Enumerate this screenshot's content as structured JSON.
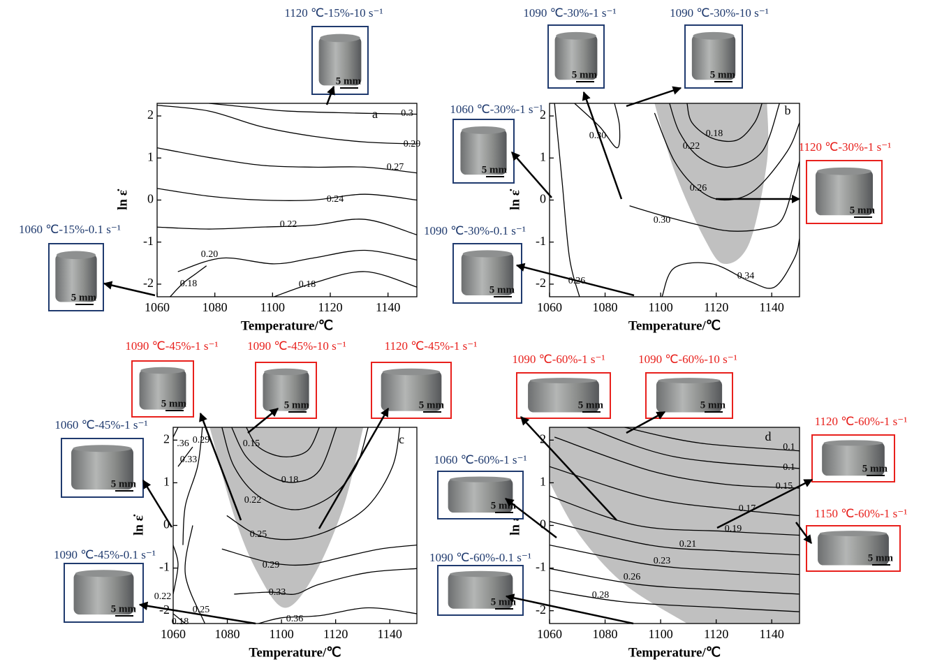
{
  "chart_data": [
    {
      "type": "contour",
      "panel": "a",
      "xlabel": "Temperature/℃",
      "ylabel": "ln ε̇",
      "xlim": [
        1060,
        1150
      ],
      "ylim": [
        -2.3,
        2.3
      ],
      "xticks": [
        1060,
        1080,
        1100,
        1120,
        1140
      ],
      "yticks": [
        -2,
        -1,
        0,
        1,
        2
      ],
      "contours": [
        {
          "value": 0.3,
          "label": "0.3"
        },
        {
          "value": 0.29,
          "label": "0.29"
        },
        {
          "value": 0.27,
          "label": "0.27"
        },
        {
          "value": 0.24,
          "label": "0.24"
        },
        {
          "value": 0.22,
          "label": "0.22"
        },
        {
          "value": 0.2,
          "label": "0.20"
        },
        {
          "value": 0.18,
          "label": "0.18"
        },
        {
          "value": 0.18,
          "label": "0.18"
        }
      ],
      "samples": [
        {
          "label": "1120 ℃-15%-10 s⁻¹",
          "scale": "5 mm",
          "color": "#1f3a6e"
        },
        {
          "label": "1060 ℃-15%-0.1 s⁻¹",
          "scale": "5 mm",
          "color": "#1f3a6e"
        }
      ]
    },
    {
      "type": "contour",
      "panel": "b",
      "xlabel": "Temperature/℃",
      "ylabel": "ln ε̇",
      "xlim": [
        1060,
        1150
      ],
      "ylim": [
        -2.3,
        2.3
      ],
      "xticks": [
        1060,
        1080,
        1100,
        1120,
        1140
      ],
      "yticks": [
        -2,
        -1,
        0,
        1,
        2
      ],
      "contours": [
        {
          "value": 0.3,
          "label": "0.30"
        },
        {
          "value": 0.18,
          "label": "0.18"
        },
        {
          "value": 0.22,
          "label": "0.22"
        },
        {
          "value": 0.26,
          "label": "0.26"
        },
        {
          "value": 0.3,
          "label": "0.30"
        },
        {
          "value": 0.34,
          "label": "0.34"
        },
        {
          "value": 0.26,
          "label": "0.26"
        }
      ],
      "samples": [
        {
          "label": "1090 ℃-30%-1 s⁻¹",
          "scale": "5 mm",
          "color": "#1f3a6e"
        },
        {
          "label": "1090 ℃-30%-10 s⁻¹",
          "scale": "5 mm",
          "color": "#1f3a6e"
        },
        {
          "label": "1060 ℃-30%-1 s⁻¹",
          "scale": "5 mm",
          "color": "#1f3a6e"
        },
        {
          "label": "1090 ℃-30%-0.1 s⁻¹",
          "scale": "5 mm",
          "color": "#1f3a6e"
        },
        {
          "label": "1120 ℃-30%-1 s⁻¹",
          "scale": "5 mm",
          "color": "#e8201c"
        }
      ]
    },
    {
      "type": "contour",
      "panel": "c",
      "xlabel": "Temperature/℃",
      "ylabel": "ln ε̇",
      "xlim": [
        1060,
        1150
      ],
      "ylim": [
        -2.3,
        2.3
      ],
      "xticks": [
        1060,
        1080,
        1100,
        1120,
        1140
      ],
      "yticks": [
        -2,
        -1,
        0,
        1,
        2
      ],
      "contours": [
        {
          "value": 0.36,
          "label": ".36"
        },
        {
          "value": 0.29,
          "label": "0.29"
        },
        {
          "value": 0.33,
          "label": "0.33"
        },
        {
          "value": 0.15,
          "label": "0.15"
        },
        {
          "value": 0.18,
          "label": "0.18"
        },
        {
          "value": 0.22,
          "label": "0.22"
        },
        {
          "value": 0.25,
          "label": "0.25"
        },
        {
          "value": 0.29,
          "label": "0.29"
        },
        {
          "value": 0.33,
          "label": "0.33"
        },
        {
          "value": 0.36,
          "label": "0.36"
        },
        {
          "value": 0.22,
          "label": "0.22"
        },
        {
          "value": 0.25,
          "label": "0.25"
        },
        {
          "value": 0.18,
          "label": "0.18"
        }
      ],
      "samples": [
        {
          "label": "1090 ℃-45%-1 s⁻¹",
          "scale": "5 mm",
          "color": "#e8201c"
        },
        {
          "label": "1090 ℃-45%-10 s⁻¹",
          "scale": "5 mm",
          "color": "#e8201c"
        },
        {
          "label": "1120 ℃-45%-1 s⁻¹",
          "scale": "5 mm",
          "color": "#e8201c"
        },
        {
          "label": "1060 ℃-45%-1 s⁻¹",
          "scale": "5 mm",
          "color": "#1f3a6e"
        },
        {
          "label": "1090 ℃-45%-0.1 s⁻¹",
          "scale": "5 mm",
          "color": "#1f3a6e"
        }
      ]
    },
    {
      "type": "contour",
      "panel": "d",
      "xlabel": "Temperature/℃",
      "ylabel": "ln ε̇",
      "xlim": [
        1060,
        1150
      ],
      "ylim": [
        -2.3,
        2.3
      ],
      "xticks": [
        1060,
        1080,
        1100,
        1120,
        1140
      ],
      "yticks": [
        -2,
        -1,
        0,
        1,
        2
      ],
      "contours": [
        {
          "value": 0.1,
          "label": "0.1"
        },
        {
          "value": 0.1,
          "label": "0.1"
        },
        {
          "value": 0.15,
          "label": "0.15"
        },
        {
          "value": 0.17,
          "label": "0.17"
        },
        {
          "value": 0.19,
          "label": "0.19"
        },
        {
          "value": 0.21,
          "label": "0.21"
        },
        {
          "value": 0.23,
          "label": "0.23"
        },
        {
          "value": 0.26,
          "label": "0.26"
        },
        {
          "value": 0.28,
          "label": "0.28"
        }
      ],
      "samples": [
        {
          "label": "1090 ℃-60%-1 s⁻¹",
          "scale": "5 mm",
          "color": "#e8201c"
        },
        {
          "label": "1090 ℃-60%-10 s⁻¹",
          "scale": "5 mm",
          "color": "#e8201c"
        },
        {
          "label": "1060 ℃-60%-1 s⁻¹",
          "scale": "5 mm",
          "color": "#1f3a6e"
        },
        {
          "label": "1090 ℃-60%-0.1 s⁻¹",
          "scale": "5 mm",
          "color": "#1f3a6e"
        },
        {
          "label": "1120 ℃-60%-1 s⁻¹",
          "scale": "5 mm",
          "color": "#e8201c"
        },
        {
          "label": "1150 ℃-60%-1 s⁻¹",
          "scale": "5 mm",
          "color": "#e8201c"
        }
      ]
    }
  ]
}
